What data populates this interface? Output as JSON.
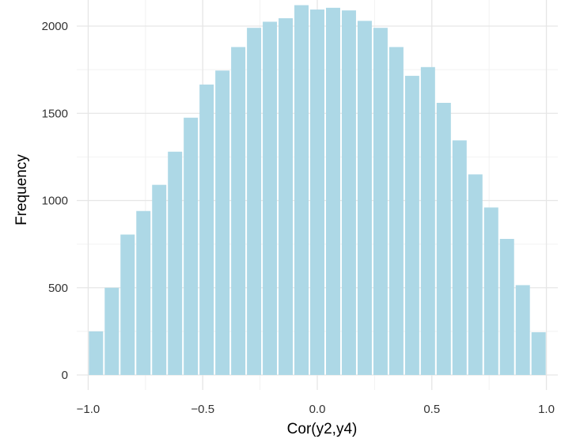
{
  "chart_data": {
    "type": "bar",
    "title": "",
    "xlabel": "Cor(y2,y4)",
    "ylabel": "Frequency",
    "xlim": [
      -1.05,
      1.05
    ],
    "ylim": [
      0,
      2150
    ],
    "x_ticks": [
      -1.0,
      -0.5,
      0.0,
      0.5,
      1.0
    ],
    "x_tick_labels": [
      "−1.0",
      "−0.5",
      "0.0",
      "0.5",
      "1.0"
    ],
    "y_ticks": [
      0,
      500,
      1000,
      1500,
      2000
    ],
    "y_tick_labels": [
      "0",
      "500",
      "1000",
      "1500",
      "2000"
    ],
    "grid": true,
    "legend": "none",
    "bar_color": "#add8e6",
    "bin_width": 0.069,
    "bin_centers": [
      -0.966,
      -0.897,
      -0.828,
      -0.759,
      -0.69,
      -0.621,
      -0.552,
      -0.483,
      -0.414,
      -0.345,
      -0.276,
      -0.207,
      -0.138,
      -0.069,
      0.0,
      0.069,
      0.138,
      0.207,
      0.276,
      0.345,
      0.414,
      0.483,
      0.552,
      0.621,
      0.69,
      0.759,
      0.828,
      0.897,
      0.966
    ],
    "values": [
      250,
      500,
      805,
      940,
      1090,
      1280,
      1475,
      1665,
      1745,
      1880,
      1990,
      2025,
      2045,
      2120,
      2095,
      2105,
      2090,
      2030,
      1990,
      1880,
      1715,
      1765,
      1560,
      1345,
      1150,
      960,
      780,
      515,
      245
    ]
  }
}
